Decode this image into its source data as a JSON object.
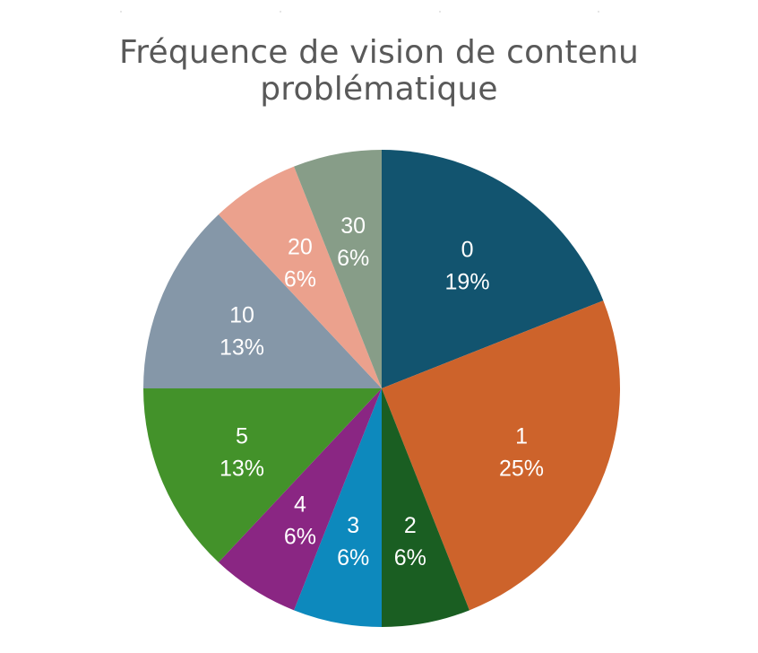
{
  "chart_data": {
    "type": "pie",
    "title": "Fréquence de vision de contenu problématique",
    "categories": [
      "0",
      "1",
      "2",
      "3",
      "4",
      "5",
      "10",
      "20",
      "30"
    ],
    "values": [
      19,
      25,
      6,
      6,
      6,
      13,
      13,
      6,
      6
    ],
    "percent_labels": [
      "19%",
      "25%",
      "6%",
      "6%",
      "6%",
      "13%",
      "13%",
      "6%",
      "6%"
    ],
    "colors": [
      "#12546f",
      "#cd632b",
      "#1a5e22",
      "#0d89bd",
      "#8a2683",
      "#43922a",
      "#8597a8",
      "#eba18d",
      "#879d88"
    ],
    "start_angle": "12 o'clock",
    "direction": "clockwise",
    "legend": "none"
  }
}
